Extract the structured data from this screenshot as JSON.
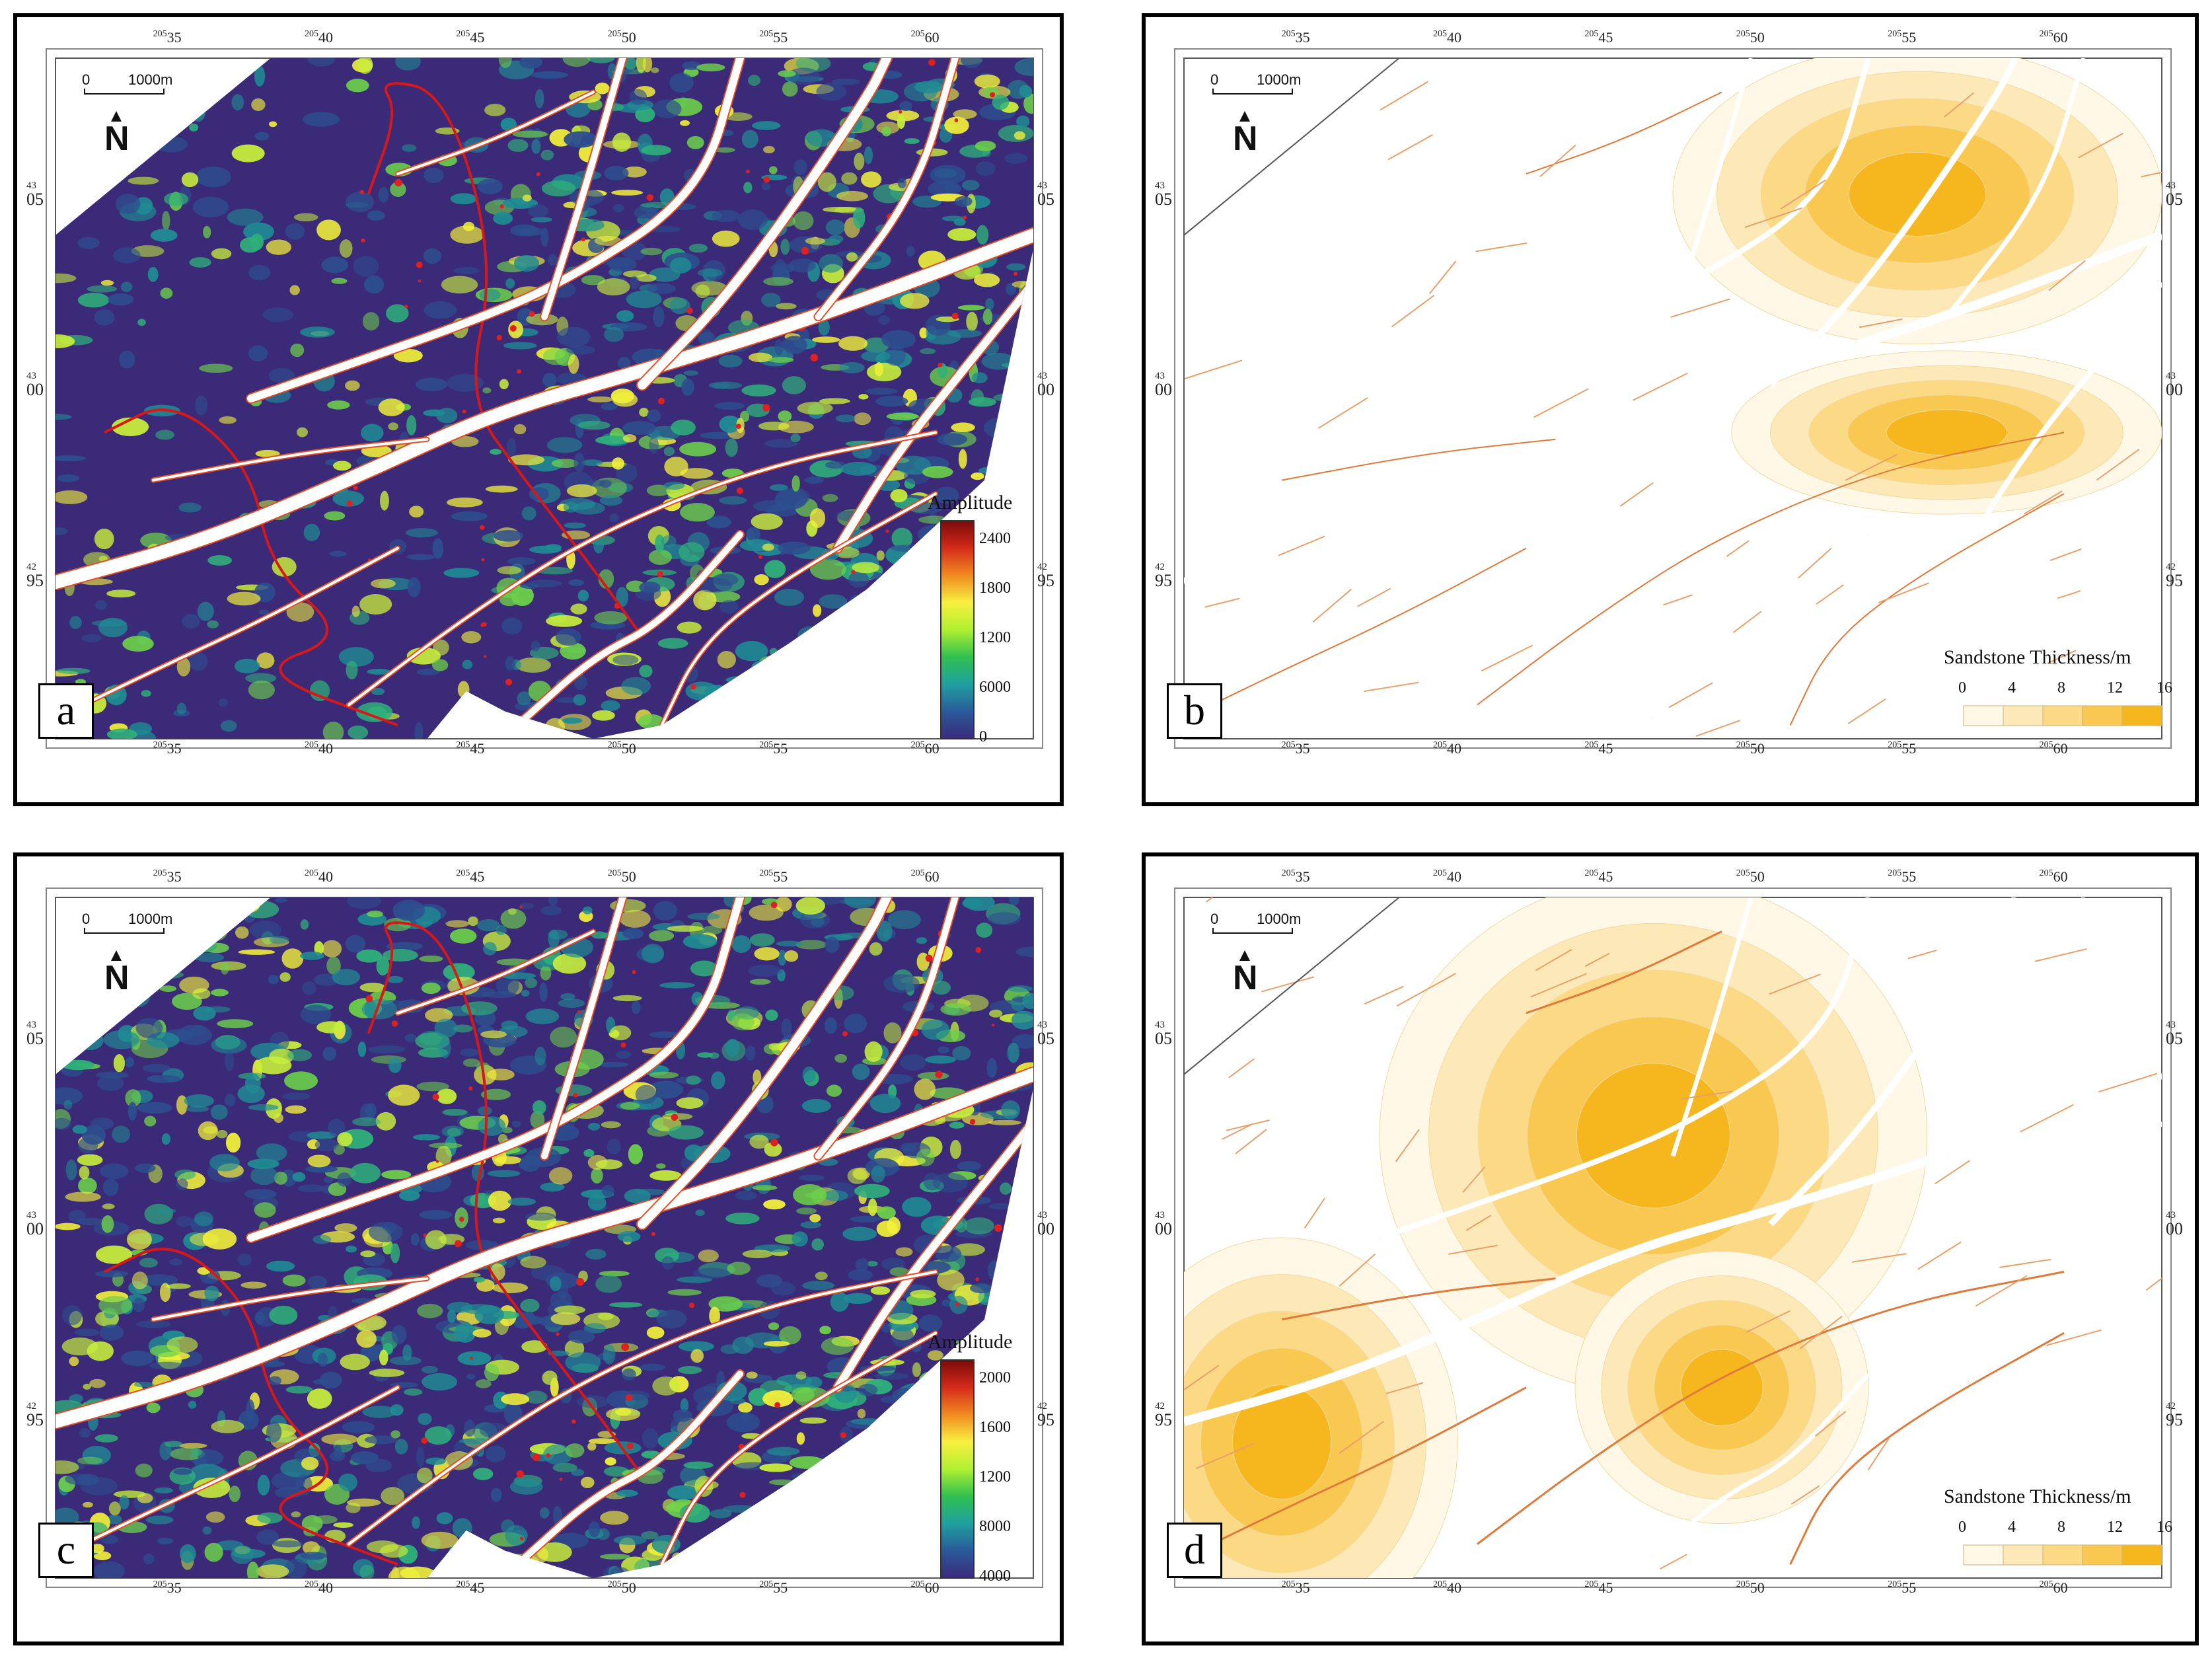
{
  "panels": [
    {
      "id": "a",
      "letter": "a",
      "type": "amplitude",
      "x_ticks": [
        {
          "sup": "205",
          "main": "35"
        },
        {
          "sup": "205",
          "main": "40"
        },
        {
          "sup": "205",
          "main": "45"
        },
        {
          "sup": "205",
          "main": "50"
        },
        {
          "sup": "205",
          "main": "55"
        },
        {
          "sup": "205",
          "main": "60"
        }
      ],
      "y_ticks": [
        {
          "sup": "43",
          "main": "05"
        },
        {
          "sup": "43",
          "main": "00"
        },
        {
          "sup": "42",
          "main": "95"
        }
      ],
      "scale_label": "1000m",
      "scale_zero": "0",
      "north_label": "N",
      "legend": {
        "title": "Amplitude",
        "ticks": [
          "2400",
          "1800",
          "1200",
          "6000",
          "0"
        ],
        "colors": [
          "#7a0a0a",
          "#d42a1a",
          "#f08a20",
          "#f8f040",
          "#b0f030",
          "#30c050",
          "#1fa0a0",
          "#2a5a9a",
          "#3a2a7a"
        ]
      }
    },
    {
      "id": "b",
      "letter": "b",
      "type": "thickness",
      "x_ticks": [
        {
          "sup": "205",
          "main": "35"
        },
        {
          "sup": "205",
          "main": "40"
        },
        {
          "sup": "205",
          "main": "45"
        },
        {
          "sup": "205",
          "main": "50"
        },
        {
          "sup": "205",
          "main": "55"
        },
        {
          "sup": "205",
          "main": "60"
        }
      ],
      "y_ticks": [
        {
          "sup": "43",
          "main": "05"
        },
        {
          "sup": "43",
          "main": "00"
        },
        {
          "sup": "42",
          "main": "95"
        }
      ],
      "scale_label": "1000m",
      "scale_zero": "0",
      "north_label": "N",
      "legend": {
        "title": "Sandstone Thickness/m",
        "ticks": [
          "0",
          "4",
          "8",
          "12",
          "16"
        ],
        "colors": [
          "#fff8e6",
          "#fde9b8",
          "#fbd985",
          "#f9c850",
          "#f6b61e"
        ]
      }
    },
    {
      "id": "c",
      "letter": "c",
      "type": "amplitude",
      "x_ticks": [
        {
          "sup": "205",
          "main": "35"
        },
        {
          "sup": "205",
          "main": "40"
        },
        {
          "sup": "205",
          "main": "45"
        },
        {
          "sup": "205",
          "main": "50"
        },
        {
          "sup": "205",
          "main": "55"
        },
        {
          "sup": "205",
          "main": "60"
        }
      ],
      "y_ticks": [
        {
          "sup": "43",
          "main": "05"
        },
        {
          "sup": "43",
          "main": "00"
        },
        {
          "sup": "42",
          "main": "95"
        }
      ],
      "scale_label": "1000m",
      "scale_zero": "0",
      "north_label": "N",
      "legend": {
        "title": "Amplitude",
        "ticks": [
          "2000",
          "1600",
          "1200",
          "8000",
          "4000"
        ],
        "colors": [
          "#7a0a0a",
          "#d42a1a",
          "#f08a20",
          "#f8f040",
          "#b0f030",
          "#30c050",
          "#1fa0a0",
          "#2a5a9a",
          "#3a2a7a"
        ]
      }
    },
    {
      "id": "d",
      "letter": "d",
      "type": "thickness",
      "x_ticks": [
        {
          "sup": "205",
          "main": "35"
        },
        {
          "sup": "205",
          "main": "40"
        },
        {
          "sup": "205",
          "main": "45"
        },
        {
          "sup": "205",
          "main": "50"
        },
        {
          "sup": "205",
          "main": "55"
        },
        {
          "sup": "205",
          "main": "60"
        }
      ],
      "y_ticks": [
        {
          "sup": "43",
          "main": "05"
        },
        {
          "sup": "43",
          "main": "00"
        },
        {
          "sup": "42",
          "main": "95"
        }
      ],
      "scale_label": "1000m",
      "scale_zero": "0",
      "north_label": "N",
      "legend": {
        "title": "Sandstone Thickness/m",
        "ticks": [
          "0",
          "4",
          "8",
          "12",
          "16"
        ],
        "colors": [
          "#fff8e6",
          "#fde9b8",
          "#fbd985",
          "#f9c850",
          "#f6b61e"
        ]
      }
    }
  ]
}
